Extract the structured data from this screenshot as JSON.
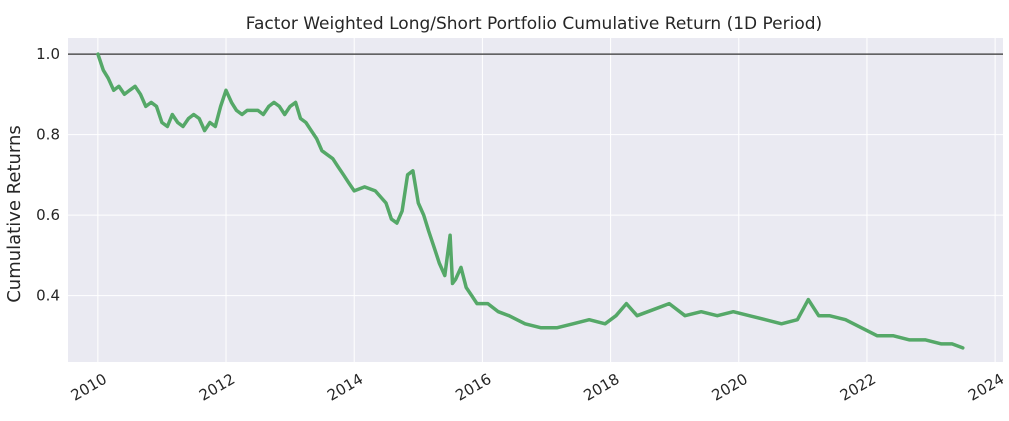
{
  "chart_data": {
    "type": "line",
    "title": "Factor Weighted Long/Short Portfolio Cumulative Return (1D Period)",
    "xlabel": "",
    "ylabel": "Cumulative Returns",
    "x_ticks": [
      "2010",
      "2012",
      "2014",
      "2016",
      "2018",
      "2020",
      "2022",
      "2024"
    ],
    "y_ticks": [
      "0.4",
      "0.6",
      "0.8",
      "1.0"
    ],
    "xlim": [
      "2009-07-15",
      "2024-02-15"
    ],
    "ylim": [
      0.235,
      1.04
    ],
    "grid": true,
    "reference_line": 1.0,
    "colors": {
      "background": "#eaeaf2",
      "grid": "#ffffff",
      "line": "#55a868",
      "reference": "#333333"
    },
    "series": [
      {
        "x": [
          "2010-01-01",
          "2010-02-01",
          "2010-03-01",
          "2010-04-01",
          "2010-05-01",
          "2010-06-01",
          "2010-07-01",
          "2010-08-01",
          "2010-09-01",
          "2010-10-01",
          "2010-11-01",
          "2010-12-01",
          "2011-01-01",
          "2011-02-01",
          "2011-03-01",
          "2011-04-01",
          "2011-05-01",
          "2011-06-01",
          "2011-07-01",
          "2011-08-01",
          "2011-09-01",
          "2011-10-01",
          "2011-11-01",
          "2011-12-01",
          "2012-01-01",
          "2012-02-01",
          "2012-03-01",
          "2012-04-01",
          "2012-05-01",
          "2012-06-01",
          "2012-07-01",
          "2012-08-01",
          "2012-09-01",
          "2012-10-01",
          "2012-11-01",
          "2012-12-01",
          "2013-01-01",
          "2013-02-01",
          "2013-03-01",
          "2013-04-01",
          "2013-05-01",
          "2013-06-01",
          "2013-07-01",
          "2013-08-01",
          "2013-09-01",
          "2013-10-01",
          "2013-11-01",
          "2013-12-01",
          "2014-01-01",
          "2014-03-01",
          "2014-05-01",
          "2014-07-01",
          "2014-08-01",
          "2014-09-01",
          "2014-10-01",
          "2014-11-01",
          "2014-12-01",
          "2015-01-01",
          "2015-02-01",
          "2015-03-01",
          "2015-04-01",
          "2015-05-01",
          "2015-06-01",
          "2015-07-01",
          "2015-07-15",
          "2015-08-01",
          "2015-09-01",
          "2015-10-01",
          "2015-11-01",
          "2015-12-01",
          "2016-02-01",
          "2016-04-01",
          "2016-06-01",
          "2016-09-01",
          "2016-12-01",
          "2017-03-01",
          "2017-06-01",
          "2017-09-01",
          "2017-12-01",
          "2018-02-01",
          "2018-04-01",
          "2018-06-01",
          "2018-08-01",
          "2018-10-01",
          "2018-12-01",
          "2019-03-01",
          "2019-06-01",
          "2019-09-01",
          "2019-12-01",
          "2020-03-01",
          "2020-06-01",
          "2020-09-01",
          "2020-12-01",
          "2021-02-01",
          "2021-04-01",
          "2021-06-01",
          "2021-09-01",
          "2021-12-01",
          "2022-03-01",
          "2022-06-01",
          "2022-09-01",
          "2022-12-01",
          "2023-03-01",
          "2023-05-01",
          "2023-07-01"
        ],
        "y": [
          1.0,
          0.96,
          0.94,
          0.91,
          0.92,
          0.9,
          0.91,
          0.92,
          0.9,
          0.87,
          0.88,
          0.87,
          0.83,
          0.82,
          0.85,
          0.83,
          0.82,
          0.84,
          0.85,
          0.84,
          0.81,
          0.83,
          0.82,
          0.87,
          0.91,
          0.88,
          0.86,
          0.85,
          0.86,
          0.86,
          0.86,
          0.85,
          0.87,
          0.88,
          0.87,
          0.85,
          0.87,
          0.88,
          0.84,
          0.83,
          0.81,
          0.79,
          0.76,
          0.75,
          0.74,
          0.72,
          0.7,
          0.68,
          0.66,
          0.67,
          0.66,
          0.63,
          0.59,
          0.58,
          0.61,
          0.7,
          0.71,
          0.63,
          0.6,
          0.56,
          0.52,
          0.48,
          0.45,
          0.55,
          0.43,
          0.44,
          0.47,
          0.42,
          0.4,
          0.38,
          0.38,
          0.36,
          0.35,
          0.33,
          0.32,
          0.32,
          0.33,
          0.34,
          0.33,
          0.35,
          0.38,
          0.35,
          0.36,
          0.37,
          0.38,
          0.35,
          0.36,
          0.35,
          0.36,
          0.35,
          0.34,
          0.33,
          0.34,
          0.39,
          0.35,
          0.35,
          0.34,
          0.32,
          0.3,
          0.3,
          0.29,
          0.29,
          0.28,
          0.28,
          0.27
        ]
      }
    ]
  }
}
